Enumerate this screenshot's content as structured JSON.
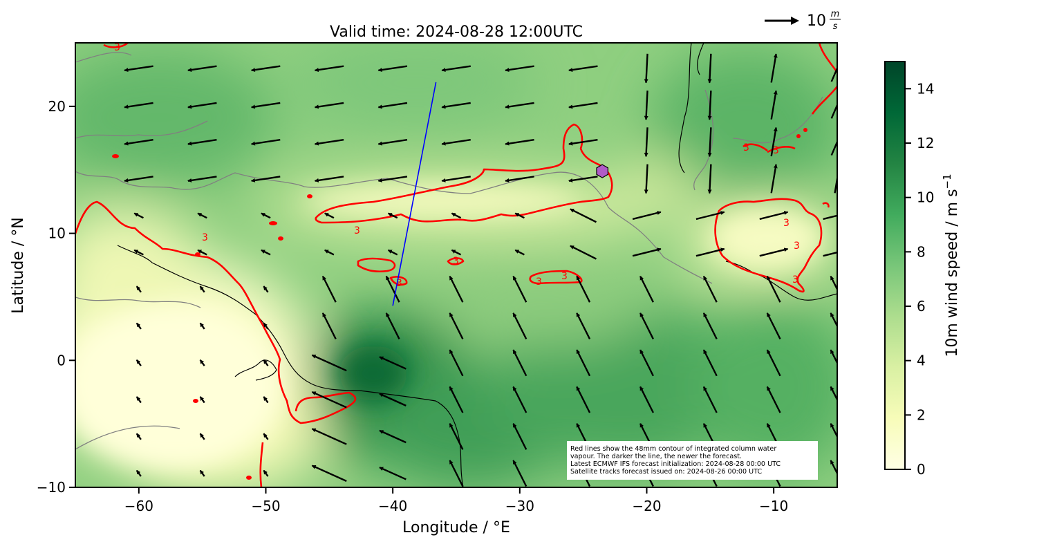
{
  "title": "Valid time: 2024-08-28 12:00UTC",
  "x_axis": {
    "label": "Longitude / °E",
    "ticks": [
      -60,
      -50,
      -40,
      -30,
      -20,
      -10
    ],
    "tick_labels": [
      "−60",
      "−50",
      "−40",
      "−30",
      "−20",
      "−10"
    ],
    "range": [
      -65,
      -5
    ]
  },
  "y_axis": {
    "label": "Latitude / °N",
    "ticks": [
      -10,
      0,
      10,
      20
    ],
    "tick_labels": [
      "−10",
      "0",
      "10",
      "20"
    ],
    "range": [
      -10,
      25
    ]
  },
  "colorbar": {
    "label": "10m wind speed / m s",
    "label_exponent": "−1",
    "range": [
      0,
      15
    ],
    "ticks": [
      0,
      2,
      4,
      6,
      8,
      10,
      12,
      14
    ],
    "tick_labels": [
      "0",
      "2",
      "4",
      "6",
      "8",
      "10",
      "12",
      "14"
    ],
    "colormap": [
      "#ffffe5",
      "#f7fcb9",
      "#d9f0a3",
      "#addd8e",
      "#78c679",
      "#41ab5d",
      "#238443",
      "#006837",
      "#004529"
    ]
  },
  "quiver_key": {
    "label": "10",
    "unit_numerator": "m",
    "unit_denominator": "s",
    "value": 10
  },
  "contour_label": "3",
  "note_lines": [
    "Red lines show the 48mm contour of integrated column water",
    "vapour. The darker the line, the newer the forecast.",
    "Latest ECMWF IFS forecast initialization: 2024-08-28 00:00 UTC",
    "Satellite tracks forecast issued on: 2024-08-26 00:00 UTC"
  ],
  "satellite_track": {
    "start": [
      -40.0,
      4.3
    ],
    "end": [
      -36.6,
      21.9
    ],
    "color": "#0000ff"
  },
  "marker": {
    "lon": -23.5,
    "lat": 14.9,
    "color": "#b05cc7",
    "shape": "hexagon"
  },
  "colors": {
    "contour": "#ff0000",
    "coast": "#000000",
    "land_outline": "#808080",
    "arrows": "#000000"
  }
}
